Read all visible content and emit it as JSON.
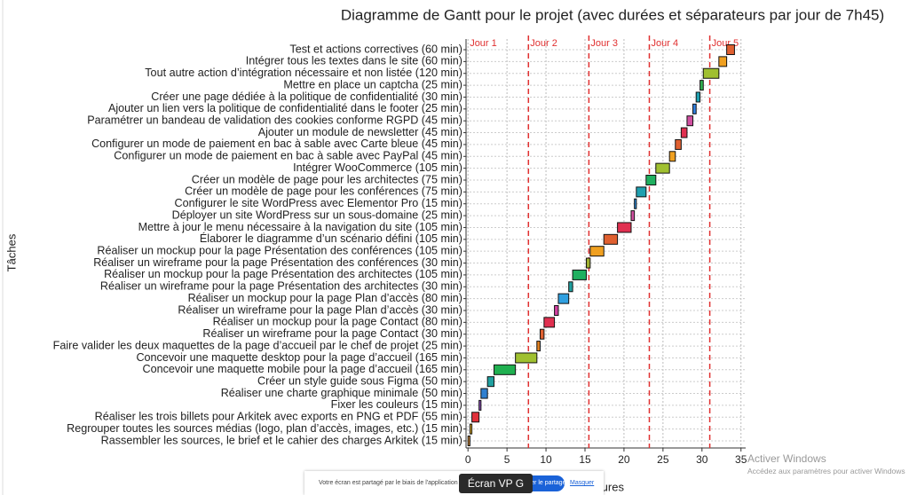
{
  "chart_data": {
    "type": "gantt",
    "title": "Diagramme de Gantt pour le projet (avec durées et séparateurs par jour de 7h45)",
    "x_label": "Heures",
    "y_label": "Tâches",
    "categories": [
      "Rassembler les sources, le brief et le cahier des charges Arkitek (15 min)",
      "Regrouper toutes les sources médias (logo, plan d’accès, images, etc.) (15 min)",
      "Réaliser les trois billets pour Arkitek avec exports en PNG et PDF (55 min)",
      "Fixer les couleurs (15 min)",
      "Réaliser une charte graphique minimale (50 min)",
      "Créer un style guide sous Figma (50 min)",
      "Concevoir une maquette mobile pour la page d’accueil (165 min)",
      "Concevoir une maquette desktop pour la page d’accueil (165 min)",
      "Faire valider les deux maquettes de la page d’accueil par le chef de projet (25 min)",
      "Réaliser un wireframe pour la page Contact (30 min)",
      "Réaliser un mockup pour la page Contact (80 min)",
      "Réaliser un wireframe pour la page Plan d’accès (30 min)",
      "Réaliser un mockup pour la page Plan d’accès (80 min)",
      "Réaliser un wireframe pour la page Présentation des architectes (30 min)",
      "Réaliser un mockup pour la page Présentation des architectes (105 min)",
      "Réaliser un wireframe pour la page Présentation des conférences (30 min)",
      "Réaliser un mockup pour la page Présentation des conférences (105 min)",
      "Élaborer le diagramme d’un scénario défini (105 min)",
      "Mettre à jour le menu nécessaire à la navigation du site (105 min)",
      "Déployer un site WordPress sur un sous-domaine (25 min)",
      "Configurer le site WordPress avec Elementor Pro (15 min)",
      "Créer un modèle de page pour les conférences (75 min)",
      "Créer un modèle de page pour les architectes (75 min)",
      "Intégrer WooCommerce (105 min)",
      "Configurer un mode de paiement en bac à sable avec PayPal (45 min)",
      "Configurer un mode de paiement en bac à sable avec Carte bleue (45 min)",
      "Ajouter un module de newsletter (45 min)",
      "Paramétrer un bandeau de validation des cookies conforme RGPD (45 min)",
      "Ajouter un lien vers la politique de confidentialité dans le footer (25 min)",
      "Créer une page dédiée à la politique de confidentialité (30 min)",
      "Mettre en place un captcha (25 min)",
      "Tout autre action d’intégration nécessaire et non listée (120 min)",
      "Intégrer tous les textes dans le site (60 min)",
      "Test et actions correctives (60 min)"
    ],
    "values": [
      0.25,
      0.25,
      0.9167,
      0.25,
      0.8333,
      0.8333,
      2.75,
      2.75,
      0.4167,
      0.5,
      1.3333,
      0.5,
      1.3333,
      0.5,
      1.75,
      0.5,
      1.75,
      1.75,
      1.75,
      0.4167,
      0.25,
      1.25,
      1.25,
      1.75,
      0.75,
      0.75,
      0.75,
      0.75,
      0.4167,
      0.5,
      0.4167,
      2,
      1,
      1
    ],
    "colors": [
      "#d08a3a",
      "#e0b030",
      "#e0303a",
      "#9050c0",
      "#3080d0",
      "#20a0a0",
      "#20b050",
      "#a0c030",
      "#e08020",
      "#e06030",
      "#e03050",
      "#d040a0",
      "#30a0e0",
      "#20a0a0",
      "#20b060",
      "#a0b030",
      "#f0a020",
      "#e06030",
      "#e03050",
      "#d050a0",
      "#3090e0",
      "#20a0b0",
      "#20b060",
      "#a0c030",
      "#f0a020",
      "#e06030",
      "#e03050",
      "#d050a0",
      "#3080e0",
      "#20a0b0",
      "#30b050",
      "#a0c030",
      "#f0a020",
      "#e06030"
    ],
    "xlim": [
      -0.25,
      35.6
    ],
    "xticks": [
      0,
      5,
      10,
      15,
      20,
      25,
      30,
      35
    ],
    "grid": true,
    "separators": [
      7.75,
      15.5,
      23.25,
      31
    ],
    "separator_color": "#e03030",
    "day_labels": [
      "Jour 1",
      "Jour 2",
      "Jour 3",
      "Jour 4",
      "Jour 5"
    ]
  },
  "overlay": {
    "share_text": "Votre écran est partagé par le biais de l'application",
    "stop_button": "Arrêter le partage",
    "hide_link": "Masquer",
    "screen_tag": "Écran VP G"
  },
  "watermark": {
    "line1": "Activer Windows",
    "line2": "Accédez aux paramètres pour activer Windows"
  }
}
